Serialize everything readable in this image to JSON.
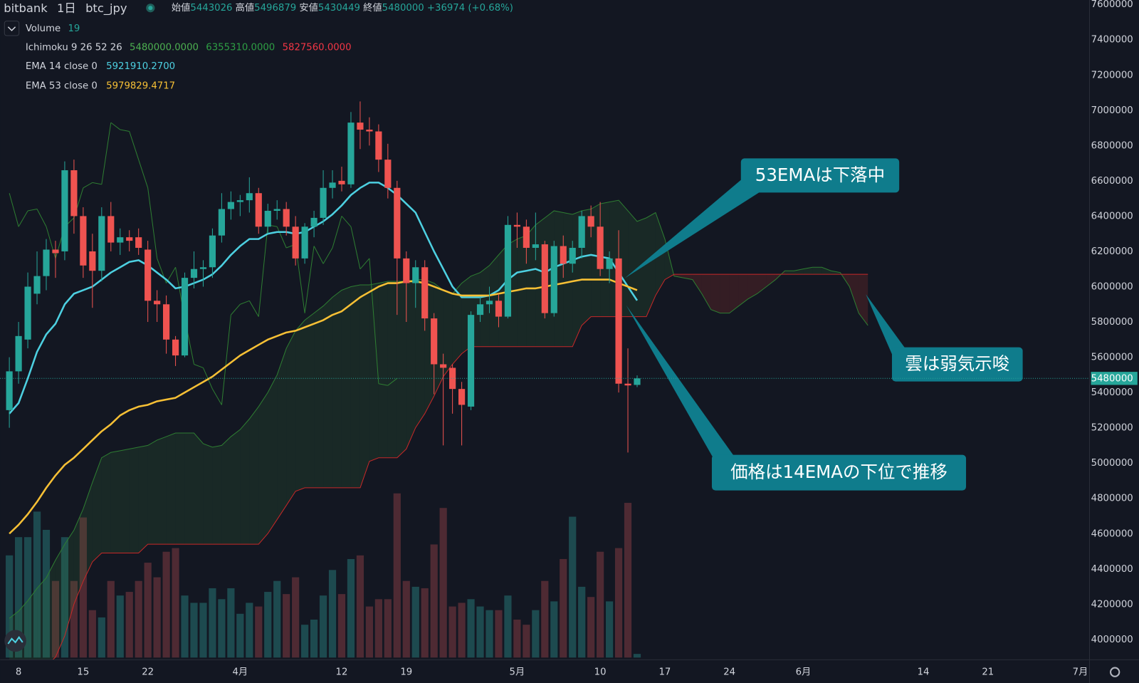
{
  "chart_data": {
    "type": "candlestick",
    "header": {
      "exchange": "bitbank",
      "interval": "1日",
      "symbol": "btc_jpy",
      "open_label": "始値",
      "high_label": "高値",
      "low_label": "安値",
      "close_label": "終値",
      "change": "+36974 (+0.68%)"
    },
    "volume_label": "Volume",
    "volume_length": 19,
    "ichimoku": {
      "label": "Ichimoku 9 26 52 26",
      "value_labels": [
        "5480000.0000",
        "6355310.0000",
        "5827560.0000"
      ],
      "value_colors": [
        "#4caf50",
        "#2e9e44",
        "#f23645"
      ],
      "span_a_color": "#2e7d32",
      "span_b_color": "#c62828",
      "lagging_color": "#2e7d32",
      "lagging_shift": 26,
      "span_a": [
        4120000,
        4160000,
        4220000,
        4290000,
        4350000,
        4450000,
        4540000,
        4620000,
        4740000,
        4890000,
        5030000,
        5060000,
        5070000,
        5080000,
        5090000,
        5100000,
        5130000,
        5150000,
        5170000,
        5170000,
        5170000,
        5110000,
        5090000,
        5100000,
        5150000,
        5190000,
        5250000,
        5320000,
        5400000,
        5500000,
        5650000,
        5750000,
        5810000,
        5850000,
        5890000,
        5940000,
        5980000,
        6000000,
        6010000,
        6010000,
        6020000,
        6030000,
        6030000,
        6030000,
        6040000,
        6040000,
        6020000,
        5980000,
        5960000,
        6020000,
        6060000,
        6080000,
        6120000,
        6180000,
        6240000,
        6270000,
        6290000,
        6350000,
        6390000,
        6430000,
        6420000,
        6410000,
        6430000,
        6440000,
        6470000,
        6480000,
        6490000,
        6430000,
        6370000,
        6390000,
        6420000,
        6270000,
        6060000,
        6050000,
        6040000,
        5960000,
        5870000,
        5850000,
        5850000,
        5890000,
        5930000,
        5960000,
        6000000,
        6040000,
        6090000,
        6090000,
        6100000,
        6110000,
        6110000,
        6090000,
        6080000,
        6000000,
        5850000,
        5780000
      ],
      "span_b": [
        3600000,
        3650000,
        3700000,
        3780000,
        3850000,
        3900000,
        4020000,
        4200000,
        4330000,
        4440000,
        4490000,
        4490000,
        4490000,
        4490000,
        4490000,
        4540000,
        4540000,
        4540000,
        4540000,
        4540000,
        4540000,
        4540000,
        4540000,
        4540000,
        4540000,
        4540000,
        4540000,
        4540000,
        4600000,
        4680000,
        4760000,
        4840000,
        4860000,
        4860000,
        4860000,
        4860000,
        4860000,
        4860000,
        4860000,
        5010000,
        5030000,
        5030000,
        5030000,
        5080000,
        5200000,
        5280000,
        5380000,
        5490000,
        5560000,
        5620000,
        5660000,
        5660000,
        5660000,
        5660000,
        5660000,
        5660000,
        5660000,
        5660000,
        5660000,
        5660000,
        5660000,
        5660000,
        5780000,
        5830000,
        5830000,
        5830000,
        5830000,
        5830000,
        5830000,
        5830000,
        5950000,
        6040000,
        6070000,
        6070000,
        6070000,
        6070000,
        6070000,
        6070000,
        6070000,
        6070000,
        6070000,
        6070000,
        6070000,
        6070000,
        6070000,
        6070000,
        6070000,
        6070000,
        6070000,
        6070000,
        6070000,
        6070000,
        6070000,
        6070000
      ]
    },
    "annotations": [
      "53EMAは下落中",
      "雲は弱気示唆",
      "価格は14EMAの下位で推移"
    ],
    "x": [
      "03-07",
      "03-08",
      "03-09",
      "03-10",
      "03-11",
      "03-12",
      "03-13",
      "03-14",
      "03-15",
      "03-16",
      "03-17",
      "03-18",
      "03-19",
      "03-20",
      "03-21",
      "03-22",
      "03-23",
      "03-24",
      "03-25",
      "03-26",
      "03-27",
      "03-28",
      "03-29",
      "03-30",
      "03-31",
      "04-01",
      "04-02",
      "04-03",
      "04-04",
      "04-05",
      "04-06",
      "04-07",
      "04-08",
      "04-09",
      "04-10",
      "04-11",
      "04-12",
      "04-13",
      "04-14",
      "04-15",
      "04-16",
      "04-17",
      "04-18",
      "04-19",
      "04-20",
      "04-21",
      "04-22",
      "04-23",
      "04-24",
      "04-25",
      "04-26",
      "04-27",
      "04-28",
      "04-29",
      "04-30",
      "05-01",
      "05-02",
      "05-03",
      "05-04",
      "05-05",
      "05-06",
      "05-07",
      "05-08",
      "05-09",
      "05-10",
      "05-11",
      "05-12",
      "05-13",
      "05-14",
      "05-15",
      "05-16",
      "05-17",
      "05-18",
      "05-19",
      "05-20",
      "05-21",
      "05-22",
      "05-23",
      "05-24",
      "05-25",
      "05-26",
      "05-27",
      "05-28",
      "05-29",
      "05-30",
      "05-31",
      "06-01",
      "06-02",
      "06-03",
      "06-04",
      "06-05",
      "06-06",
      "06-07",
      "06-08"
    ],
    "open": [
      5300000,
      5520000,
      5700000,
      5960000,
      6060000,
      6210000,
      6200000,
      6660000,
      6400000,
      6200000,
      6090000,
      6400000,
      6250000,
      6280000,
      6280000,
      6210000,
      5920000,
      5900000,
      5700000,
      5610000,
      6050000,
      6100000,
      6110000,
      6290000,
      6440000,
      6480000,
      6490000,
      6530000,
      6340000,
      6430000,
      6440000,
      6340000,
      6160000,
      6340000,
      6390000,
      6560000,
      6600000,
      6580000,
      6930000,
      6890000,
      6880000,
      6720000,
      6560000,
      6160000,
      6020000,
      6110000,
      5820000,
      5560000,
      5540000,
      5420000,
      5320000,
      5840000,
      5900000,
      5920000,
      5830000,
      6350000,
      6340000,
      6220000,
      6240000,
      5850000,
      6230000,
      6130000,
      6220000,
      6400000,
      6340000,
      6100000,
      6160000,
      5450000,
      5443026,
      null,
      null,
      null,
      null,
      null,
      null,
      null,
      null,
      null,
      null,
      null,
      null,
      null,
      null,
      null,
      null,
      null,
      null,
      null,
      null,
      null,
      null,
      null,
      null,
      null
    ],
    "high": [
      5600000,
      5800000,
      6080000,
      6200000,
      6270000,
      6260000,
      6710000,
      6720000,
      6450000,
      6300000,
      6450000,
      6480000,
      6330000,
      6320000,
      6330000,
      6260000,
      5980000,
      5950000,
      5720000,
      6080000,
      6200000,
      6150000,
      6330000,
      6530000,
      6540000,
      6520000,
      6620000,
      6560000,
      6470000,
      6490000,
      6480000,
      6400000,
      6360000,
      6430000,
      6660000,
      6660000,
      6680000,
      6990000,
      7050000,
      6960000,
      6920000,
      6810000,
      6600000,
      6200000,
      6150000,
      6150000,
      5850000,
      5620000,
      5560000,
      5460000,
      5860000,
      5940000,
      6000000,
      5960000,
      6400000,
      6420000,
      6380000,
      6420000,
      6260000,
      6260000,
      6290000,
      6260000,
      6430000,
      6460000,
      6480000,
      6200000,
      6320000,
      5650000,
      5496879,
      null,
      null,
      null,
      null,
      null,
      null,
      null,
      null,
      null,
      null,
      null,
      null,
      null,
      null,
      null,
      null,
      null,
      null,
      null,
      null,
      null,
      null,
      null,
      null,
      null
    ],
    "low": [
      5200000,
      5450000,
      5650000,
      5900000,
      5980000,
      6050000,
      6150000,
      6300000,
      6050000,
      5880000,
      6030000,
      6200000,
      6180000,
      6200000,
      6180000,
      5800000,
      5800000,
      5620000,
      5550000,
      5600000,
      5990000,
      6000000,
      6050000,
      6250000,
      6380000,
      6400000,
      6420000,
      6300000,
      6300000,
      6380000,
      6290000,
      6120000,
      6130000,
      6280000,
      6350000,
      6500000,
      6540000,
      6560000,
      6780000,
      6800000,
      6650000,
      6500000,
      5840000,
      5800000,
      5880000,
      5750000,
      5390000,
      5100000,
      5280000,
      5100000,
      5300000,
      5800000,
      5850000,
      5770000,
      5820000,
      6220000,
      6130000,
      6150000,
      5820000,
      5830000,
      6050000,
      6080000,
      6160000,
      6280000,
      6060000,
      6020000,
      5400000,
      5060000,
      5430449,
      null,
      null,
      null,
      null,
      null,
      null,
      null,
      null,
      null,
      null,
      null,
      null,
      null,
      null,
      null,
      null,
      null,
      null,
      null,
      null,
      null,
      null,
      null,
      null,
      null
    ],
    "close": [
      5520000,
      5720000,
      6000000,
      6060000,
      6210000,
      6190000,
      6660000,
      6400000,
      6120000,
      6090000,
      6400000,
      6250000,
      6280000,
      6260000,
      6220000,
      5920000,
      5900000,
      5700000,
      5610000,
      6050000,
      6100000,
      6110000,
      6290000,
      6440000,
      6480000,
      6490000,
      6530000,
      6340000,
      6430000,
      6440000,
      6340000,
      6160000,
      6340000,
      6390000,
      6560000,
      6590000,
      6580000,
      6930000,
      6890000,
      6880000,
      6720000,
      6560000,
      6160000,
      6020000,
      6110000,
      5820000,
      5560000,
      5540000,
      5420000,
      5330000,
      5840000,
      5900000,
      5920000,
      5830000,
      6350000,
      6340000,
      6220000,
      6240000,
      5850000,
      6230000,
      6130000,
      6220000,
      6400000,
      6340000,
      6100000,
      6160000,
      5450000,
      5440000,
      5480000,
      null,
      null,
      null,
      null,
      null,
      null,
      null,
      null,
      null,
      null,
      null,
      null,
      null,
      null,
      null,
      null,
      null,
      null,
      null,
      null,
      null,
      null,
      null,
      null,
      null
    ],
    "volume": [
      140,
      165,
      165,
      200,
      175,
      105,
      165,
      105,
      192,
      65,
      55,
      105,
      85,
      90,
      105,
      130,
      110,
      145,
      150,
      85,
      75,
      75,
      95,
      80,
      95,
      60,
      75,
      70,
      90,
      105,
      87,
      110,
      45,
      52,
      85,
      120,
      87,
      135,
      140,
      70,
      80,
      80,
      225,
      105,
      97,
      95,
      155,
      205,
      70,
      75,
      80,
      70,
      65,
      65,
      85,
      52,
      45,
      65,
      105,
      77,
      135,
      193,
      97,
      83,
      145,
      77,
      150,
      212,
      5,
      null,
      null,
      null,
      null,
      null,
      null,
      null,
      null,
      null,
      null,
      null,
      null,
      null,
      null,
      null,
      null,
      null,
      null,
      null,
      null,
      null,
      null,
      null,
      null,
      null
    ],
    "up_color": "#26a69a",
    "down_color": "#ef5350",
    "volume_up_color": "#1d4a4f",
    "volume_down_color": "#4e2a33",
    "series": [
      {
        "name": "EMA 14 close 0",
        "value_label": "5921910.2700",
        "color": "#4dd0e1",
        "values": [
          5280000,
          5340000,
          5480000,
          5630000,
          5730000,
          5790000,
          5900000,
          5960000,
          5980000,
          6000000,
          6040000,
          6080000,
          6110000,
          6140000,
          6150000,
          6120000,
          6080000,
          6040000,
          5990000,
          6000000,
          6020000,
          6040000,
          6070000,
          6120000,
          6180000,
          6230000,
          6270000,
          6270000,
          6300000,
          6310000,
          6310000,
          6300000,
          6310000,
          6340000,
          6370000,
          6410000,
          6460000,
          6520000,
          6560000,
          6590000,
          6590000,
          6560000,
          6520000,
          6470000,
          6420000,
          6310000,
          6200000,
          6100000,
          6000000,
          5940000,
          5940000,
          5940000,
          5950000,
          5980000,
          6040000,
          6080000,
          6090000,
          6100000,
          6080000,
          6110000,
          6130000,
          6150000,
          6170000,
          6180000,
          6170000,
          6160000,
          6080000,
          6000000,
          5921910.27,
          null,
          null,
          null,
          null,
          null,
          null,
          null,
          null,
          null,
          null,
          null,
          null,
          null,
          null,
          null,
          null,
          null,
          null,
          null,
          null,
          null,
          null,
          null,
          null,
          null
        ]
      },
      {
        "name": "EMA 53 close 0",
        "value_label": "5979829.4717",
        "color": "#f7c035",
        "values": [
          4600000,
          4650000,
          4710000,
          4780000,
          4860000,
          4930000,
          4990000,
          5030000,
          5080000,
          5130000,
          5180000,
          5220000,
          5270000,
          5300000,
          5320000,
          5330000,
          5350000,
          5360000,
          5370000,
          5400000,
          5430000,
          5460000,
          5490000,
          5530000,
          5570000,
          5610000,
          5640000,
          5670000,
          5700000,
          5720000,
          5740000,
          5750000,
          5770000,
          5790000,
          5810000,
          5840000,
          5860000,
          5900000,
          5940000,
          5970000,
          6000000,
          6020000,
          6020000,
          6030000,
          6030000,
          6020000,
          6000000,
          5980000,
          5960000,
          5950000,
          5950000,
          5950000,
          5950000,
          5960000,
          5970000,
          5980000,
          5990000,
          5990000,
          6000000,
          6010000,
          6020000,
          6030000,
          6040000,
          6040000,
          6040000,
          6040000,
          6020000,
          6000000,
          5979829.4717,
          null,
          null,
          null,
          null,
          null,
          null,
          null,
          null,
          null,
          null,
          null,
          null,
          null,
          null,
          null,
          null,
          null,
          null,
          null,
          null,
          null,
          null,
          null,
          null,
          null
        ]
      }
    ],
    "xlim": [
      "03-06",
      "07-02"
    ],
    "xticks": [
      {
        "value": "03-08",
        "label": "8"
      },
      {
        "value": "03-15",
        "label": "15"
      },
      {
        "value": "03-22",
        "label": "22"
      },
      {
        "value": "04-01",
        "label": "4月"
      },
      {
        "value": "04-12",
        "label": "12"
      },
      {
        "value": "04-19",
        "label": "19"
      },
      {
        "value": "05-01",
        "label": "5月"
      },
      {
        "value": "05-10",
        "label": "10"
      },
      {
        "value": "05-17",
        "label": "17"
      },
      {
        "value": "05-24",
        "label": "24"
      },
      {
        "value": "06-01",
        "label": "6月"
      },
      {
        "value": "06-14",
        "label": "14"
      },
      {
        "value": "06-21",
        "label": "21"
      },
      {
        "value": "07-01",
        "label": "7月"
      }
    ],
    "ylim": [
      3885000,
      7625000
    ],
    "yticks": [
      4000000,
      4200000,
      4400000,
      4600000,
      4800000,
      5000000,
      5200000,
      5400000,
      5600000,
      5800000,
      6000000,
      6200000,
      6400000,
      6600000,
      6800000,
      7000000,
      7200000,
      7400000,
      7600000
    ],
    "grid": false
  }
}
